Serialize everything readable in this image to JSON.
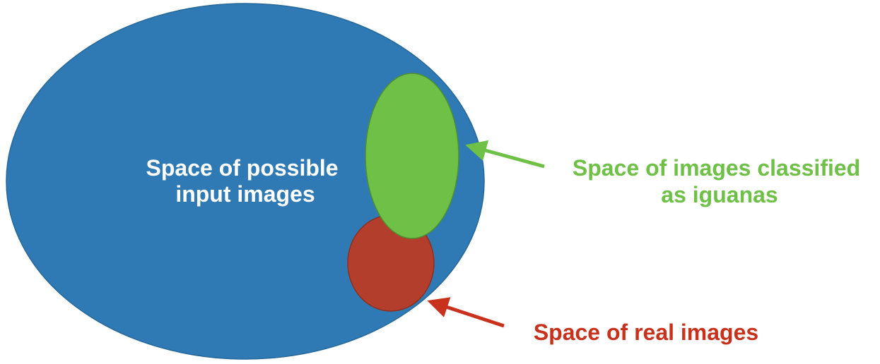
{
  "diagram": {
    "regions": {
      "input_space": {
        "label_lines": [
          "Space of possible",
          "input images"
        ],
        "color": "#2F7AB4",
        "text_color": "#FFFFFF"
      },
      "iguana_space": {
        "label_lines": [
          "Space of images classified",
          "as iguanas"
        ],
        "color": "#6EC046",
        "text_color": "#6EC046"
      },
      "real_space": {
        "label_lines": [
          "Space of real images"
        ],
        "color": "#B23E2B",
        "text_color": "#C8321C"
      }
    }
  }
}
